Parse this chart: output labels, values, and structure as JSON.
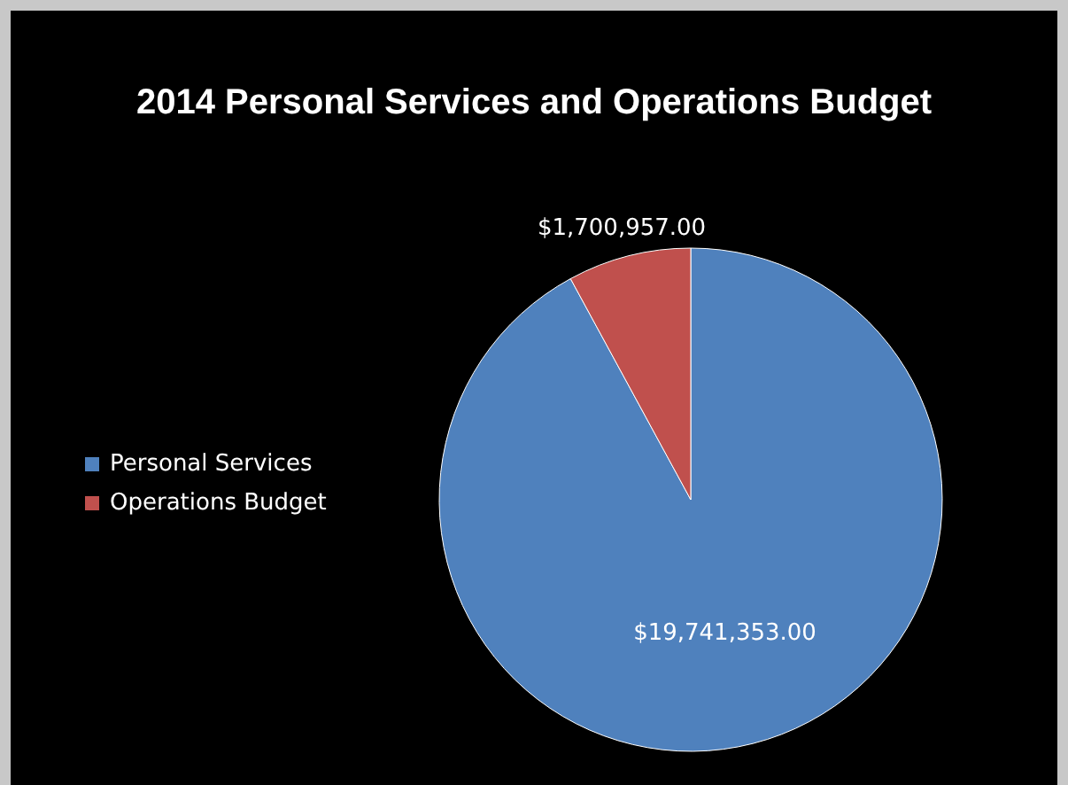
{
  "chart_data": {
    "type": "pie",
    "title": "2014 Personal Services and Operations Budget",
    "categories": [
      "Personal Services",
      "Operations Budget"
    ],
    "values": [
      19741353.0,
      1700957.0
    ],
    "colors": [
      "#4f81bd",
      "#c0504d"
    ],
    "value_labels": [
      "$19,741,353.00",
      "$1,700,957.00"
    ],
    "legend": "left"
  }
}
